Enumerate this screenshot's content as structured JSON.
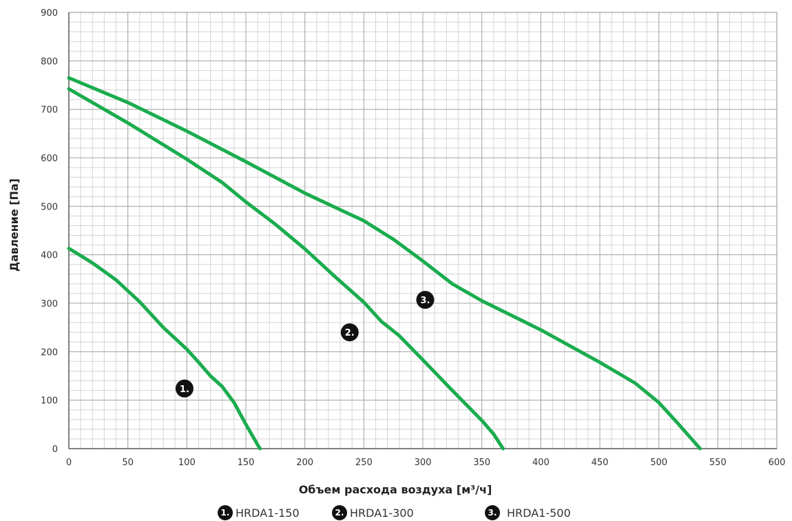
{
  "chart_data": {
    "type": "line",
    "xlabel": "Объем расхода воздуха [м³/ч]",
    "ylabel": "Давление [Па]",
    "xlim": [
      0,
      600
    ],
    "ylim": [
      0,
      900
    ],
    "x_ticks": [
      0,
      50,
      100,
      150,
      200,
      250,
      300,
      350,
      400,
      450,
      500,
      550,
      600
    ],
    "y_ticks": [
      0,
      100,
      200,
      300,
      400,
      500,
      600,
      700,
      800,
      900
    ],
    "grid": true,
    "legend_position": "bottom",
    "line_color": "#1aac4e",
    "series": [
      {
        "name": "HRDA1-150",
        "marker": "1.",
        "marker_at": [
          98,
          124
        ],
        "points": [
          [
            0,
            413
          ],
          [
            20,
            383
          ],
          [
            40,
            348
          ],
          [
            60,
            303
          ],
          [
            80,
            250
          ],
          [
            100,
            205
          ],
          [
            110,
            178
          ],
          [
            120,
            150
          ],
          [
            130,
            128
          ],
          [
            140,
            95
          ],
          [
            150,
            50
          ],
          [
            160,
            8
          ],
          [
            162,
            0
          ]
        ]
      },
      {
        "name": "HRDA1-300",
        "marker": "2.",
        "marker_at": [
          238,
          240
        ],
        "points": [
          [
            0,
            742
          ],
          [
            50,
            672
          ],
          [
            100,
            597
          ],
          [
            130,
            549
          ],
          [
            150,
            509
          ],
          [
            175,
            463
          ],
          [
            200,
            412
          ],
          [
            225,
            356
          ],
          [
            250,
            302
          ],
          [
            265,
            262
          ],
          [
            280,
            233
          ],
          [
            300,
            183
          ],
          [
            325,
            120
          ],
          [
            350,
            58
          ],
          [
            360,
            30
          ],
          [
            368,
            0
          ]
        ]
      },
      {
        "name": "HRDA1-500",
        "marker": "3.",
        "marker_at": [
          302,
          307
        ],
        "points": [
          [
            0,
            765
          ],
          [
            50,
            714
          ],
          [
            100,
            655
          ],
          [
            150,
            592
          ],
          [
            200,
            527
          ],
          [
            250,
            470
          ],
          [
            275,
            432
          ],
          [
            300,
            387
          ],
          [
            325,
            340
          ],
          [
            350,
            305
          ],
          [
            400,
            245
          ],
          [
            450,
            178
          ],
          [
            480,
            135
          ],
          [
            500,
            95
          ],
          [
            515,
            55
          ],
          [
            535,
            0
          ]
        ]
      }
    ]
  }
}
